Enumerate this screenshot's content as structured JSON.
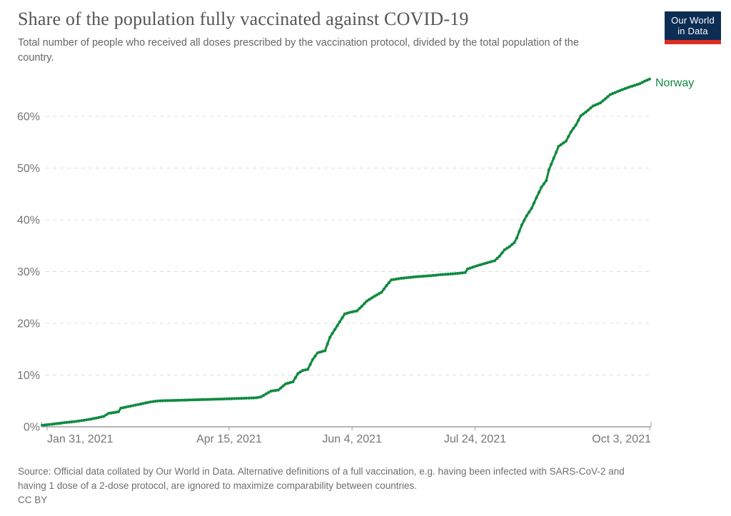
{
  "header": {
    "title": "Share of the population fully vaccinated against COVID-19",
    "subtitle": "Total number of people who received all doses prescribed by the vaccination protocol, divided by the total population of the country.",
    "logo": {
      "line1": "Our World",
      "line2": "in Data",
      "bg_color": "#0c2d54",
      "bar_color": "#dd2c24"
    }
  },
  "footer": {
    "source_lines": [
      "Source: Official data collated by Our World in Data. Alternative definitions of a full vaccination, e.g. having been infected with SARS-CoV-2 and",
      "having 1 dose of a 2-dose protocol, are ignored to maximize comparability between countries."
    ],
    "license": "CC BY"
  },
  "chart_data": {
    "type": "line",
    "title": "Share of the population fully vaccinated against COVID-19",
    "xlabel": "",
    "ylabel": "",
    "x_start_date": "2021-01-31",
    "x_end_date": "2021-10-03",
    "ylim": [
      0,
      70
    ],
    "grid": "dashed-horizontal",
    "legend_position": "end-of-line",
    "y_ticks": [
      0,
      10,
      20,
      30,
      40,
      50,
      60
    ],
    "y_tick_suffix": "%",
    "x_ticks": [
      {
        "date": "2021-01-31",
        "label": "Jan 31, 2021",
        "anchor": "start"
      },
      {
        "date": "2021-04-15",
        "label": "Apr 15, 2021",
        "anchor": "middle"
      },
      {
        "date": "2021-06-04",
        "label": "Jun 4, 2021",
        "anchor": "middle"
      },
      {
        "date": "2021-07-24",
        "label": "Jul 24, 2021",
        "anchor": "middle"
      },
      {
        "date": "2021-10-03",
        "label": "Oct 3, 2021",
        "anchor": "end"
      }
    ],
    "series": [
      {
        "name": "Norway",
        "color": "#0f8a3f",
        "points": [
          [
            "2021-01-29",
            0.3
          ],
          [
            "2021-02-02",
            0.5
          ],
          [
            "2021-02-07",
            0.8
          ],
          [
            "2021-02-11",
            1.0
          ],
          [
            "2021-02-14",
            1.2
          ],
          [
            "2021-02-18",
            1.5
          ],
          [
            "2021-02-21",
            1.8
          ],
          [
            "2021-02-23",
            2.0
          ],
          [
            "2021-02-25",
            2.6
          ],
          [
            "2021-03-01",
            2.9
          ],
          [
            "2021-03-02",
            3.6
          ],
          [
            "2021-03-05",
            3.9
          ],
          [
            "2021-03-07",
            4.1
          ],
          [
            "2021-03-09",
            4.3
          ],
          [
            "2021-03-14",
            4.8
          ],
          [
            "2021-03-17",
            5.0
          ],
          [
            "2021-03-24",
            5.1
          ],
          [
            "2021-03-31",
            5.2
          ],
          [
            "2021-04-07",
            5.3
          ],
          [
            "2021-04-14",
            5.4
          ],
          [
            "2021-04-20",
            5.5
          ],
          [
            "2021-04-26",
            5.6
          ],
          [
            "2021-04-28",
            5.8
          ],
          [
            "2021-05-02",
            6.9
          ],
          [
            "2021-05-05",
            7.1
          ],
          [
            "2021-05-08",
            8.3
          ],
          [
            "2021-05-11",
            8.7
          ],
          [
            "2021-05-13",
            10.3
          ],
          [
            "2021-05-15",
            10.9
          ],
          [
            "2021-05-17",
            11.1
          ],
          [
            "2021-05-19",
            13.0
          ],
          [
            "2021-05-21",
            14.3
          ],
          [
            "2021-05-24",
            14.7
          ],
          [
            "2021-05-26",
            17.3
          ],
          [
            "2021-05-28",
            18.8
          ],
          [
            "2021-05-30",
            20.3
          ],
          [
            "2021-06-01",
            21.8
          ],
          [
            "2021-06-03",
            22.1
          ],
          [
            "2021-06-06",
            22.4
          ],
          [
            "2021-06-08",
            23.3
          ],
          [
            "2021-06-10",
            24.3
          ],
          [
            "2021-06-13",
            25.2
          ],
          [
            "2021-06-16",
            26.0
          ],
          [
            "2021-06-18",
            27.3
          ],
          [
            "2021-06-20",
            28.4
          ],
          [
            "2021-06-24",
            28.7
          ],
          [
            "2021-06-30",
            29.0
          ],
          [
            "2021-07-06",
            29.2
          ],
          [
            "2021-07-10",
            29.4
          ],
          [
            "2021-07-16",
            29.6
          ],
          [
            "2021-07-20",
            29.8
          ],
          [
            "2021-07-21",
            30.5
          ],
          [
            "2021-07-24",
            31.0
          ],
          [
            "2021-07-29",
            31.7
          ],
          [
            "2021-08-01",
            32.1
          ],
          [
            "2021-08-03",
            33.0
          ],
          [
            "2021-08-05",
            34.2
          ],
          [
            "2021-08-07",
            34.8
          ],
          [
            "2021-08-09",
            35.6
          ],
          [
            "2021-08-10",
            36.5
          ],
          [
            "2021-08-12",
            39.0
          ],
          [
            "2021-08-14",
            40.8
          ],
          [
            "2021-08-16",
            42.2
          ],
          [
            "2021-08-18",
            44.3
          ],
          [
            "2021-08-20",
            46.3
          ],
          [
            "2021-08-22",
            47.6
          ],
          [
            "2021-08-23",
            49.6
          ],
          [
            "2021-08-25",
            51.9
          ],
          [
            "2021-08-27",
            54.2
          ],
          [
            "2021-08-30",
            55.2
          ],
          [
            "2021-09-01",
            57.0
          ],
          [
            "2021-09-03",
            58.3
          ],
          [
            "2021-09-05",
            60.1
          ],
          [
            "2021-09-07",
            60.8
          ],
          [
            "2021-09-10",
            62.0
          ],
          [
            "2021-09-13",
            62.6
          ],
          [
            "2021-09-15",
            63.4
          ],
          [
            "2021-09-17",
            64.2
          ],
          [
            "2021-09-21",
            65.0
          ],
          [
            "2021-09-25",
            65.7
          ],
          [
            "2021-09-29",
            66.3
          ],
          [
            "2021-10-01",
            66.8
          ],
          [
            "2021-10-03",
            67.2
          ]
        ]
      }
    ]
  }
}
